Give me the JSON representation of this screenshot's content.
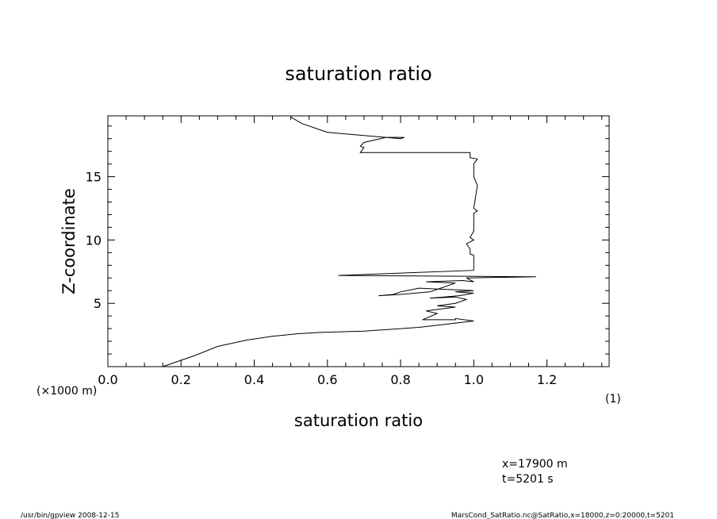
{
  "chart_data": {
    "type": "line",
    "title": "saturation ratio",
    "xlabel": "saturation ratio",
    "ylabel": "Z-coordinate",
    "x_unit": "(1)",
    "y_unit": "(×1000 m)",
    "xlim": [
      0.0,
      1.37
    ],
    "ylim": [
      0.0,
      19.8
    ],
    "x_ticks": [
      "0.0",
      "0.2",
      "0.4",
      "0.6",
      "0.8",
      "1.0",
      "1.2"
    ],
    "x_tick_values": [
      0.0,
      0.2,
      0.4,
      0.6,
      0.8,
      1.0,
      1.2
    ],
    "y_ticks": [
      "5",
      "10",
      "15"
    ],
    "y_tick_values": [
      5,
      10,
      15
    ],
    "grid": false,
    "series": [
      {
        "x": [
          0.15,
          0.19,
          0.24,
          0.3,
          0.38,
          0.45,
          0.52,
          0.58,
          0.7,
          0.85,
          1.0,
          0.95,
          0.95,
          0.86,
          0.9,
          0.87,
          0.95,
          0.9,
          0.95,
          0.98,
          0.95,
          0.88,
          0.96,
          1.0,
          0.95,
          1.0,
          0.85,
          0.8,
          0.78,
          0.74,
          0.8,
          0.88,
          0.9,
          0.95,
          0.87,
          0.97,
          1.0,
          0.98,
          1.17,
          0.63,
          1.0,
          1.0,
          0.99,
          0.99,
          0.98,
          1.0,
          0.99,
          1.0,
          1.0,
          1.01,
          1.0,
          1.01,
          1.0,
          1.0,
          1.0,
          1.0,
          1.0,
          1.0,
          1.01,
          0.99,
          0.99,
          0.69,
          0.7,
          0.69,
          0.7,
          0.76,
          0.81,
          0.8,
          0.6,
          0.58,
          0.53,
          0.5
        ],
        "y": [
          0.0,
          0.4,
          0.9,
          1.6,
          2.1,
          2.4,
          2.6,
          2.7,
          2.8,
          3.1,
          3.6,
          3.8,
          3.7,
          3.7,
          4.2,
          4.4,
          4.7,
          4.8,
          5.0,
          5.3,
          5.5,
          5.4,
          5.6,
          5.8,
          5.9,
          6.0,
          6.2,
          5.9,
          5.7,
          5.6,
          5.7,
          5.9,
          6.1,
          6.6,
          6.7,
          6.8,
          6.7,
          7.0,
          7.1,
          7.2,
          7.6,
          8.8,
          8.9,
          9.3,
          9.7,
          10.0,
          10.2,
          10.7,
          12.1,
          12.3,
          12.5,
          14.3,
          15.0,
          15.2,
          15.4,
          15.6,
          15.8,
          16.0,
          16.4,
          16.5,
          16.9,
          16.9,
          17.3,
          17.4,
          17.7,
          18.1,
          18.1,
          18.0,
          18.5,
          18.7,
          19.2,
          19.7
        ]
      }
    ]
  },
  "annotations": {
    "position_x": "x=17900 m",
    "time": "t=5201 s"
  },
  "footer": {
    "program": "/usr/bin/gpview   2008-12-15",
    "source": "MarsCond_SatRatio.nc@SatRatio,x=18000,z=0:20000,t=5201"
  }
}
